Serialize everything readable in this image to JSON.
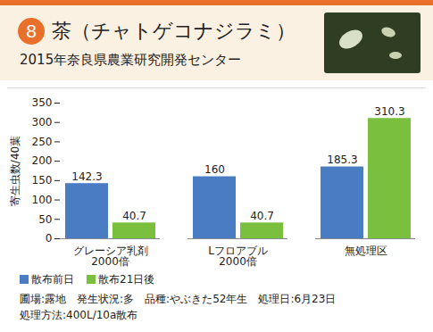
{
  "chart_data": {
    "type": "bar",
    "badge": "8",
    "title": "茶（チャトゲコナジラミ）",
    "subtitle": "2015年奈良県農業研究開発センター",
    "y_label": "寄生虫数/40葉",
    "categories": [
      "グレーシア乳剤\n2000倍",
      "Lフロアブル\n2000倍",
      "無処理区"
    ],
    "series": [
      {
        "name": "散布前日",
        "color": "#4a7cc4",
        "values": [
          142.3,
          160,
          185.3
        ]
      },
      {
        "name": "散布21日後",
        "color": "#7bbf3f",
        "values": [
          40.7,
          40.7,
          310.3
        ]
      }
    ],
    "ylim": [
      0,
      350
    ],
    "yticks": [
      0,
      50,
      100,
      150,
      200,
      250,
      300,
      350
    ],
    "grid": false,
    "data_labels": true,
    "legend": "bottom-left",
    "annotations": [
      "圃場:露地　発生状況:多　品種:やぶきた52年生　処理日:6月23日",
      "処理方法:400L/10a散布"
    ]
  }
}
